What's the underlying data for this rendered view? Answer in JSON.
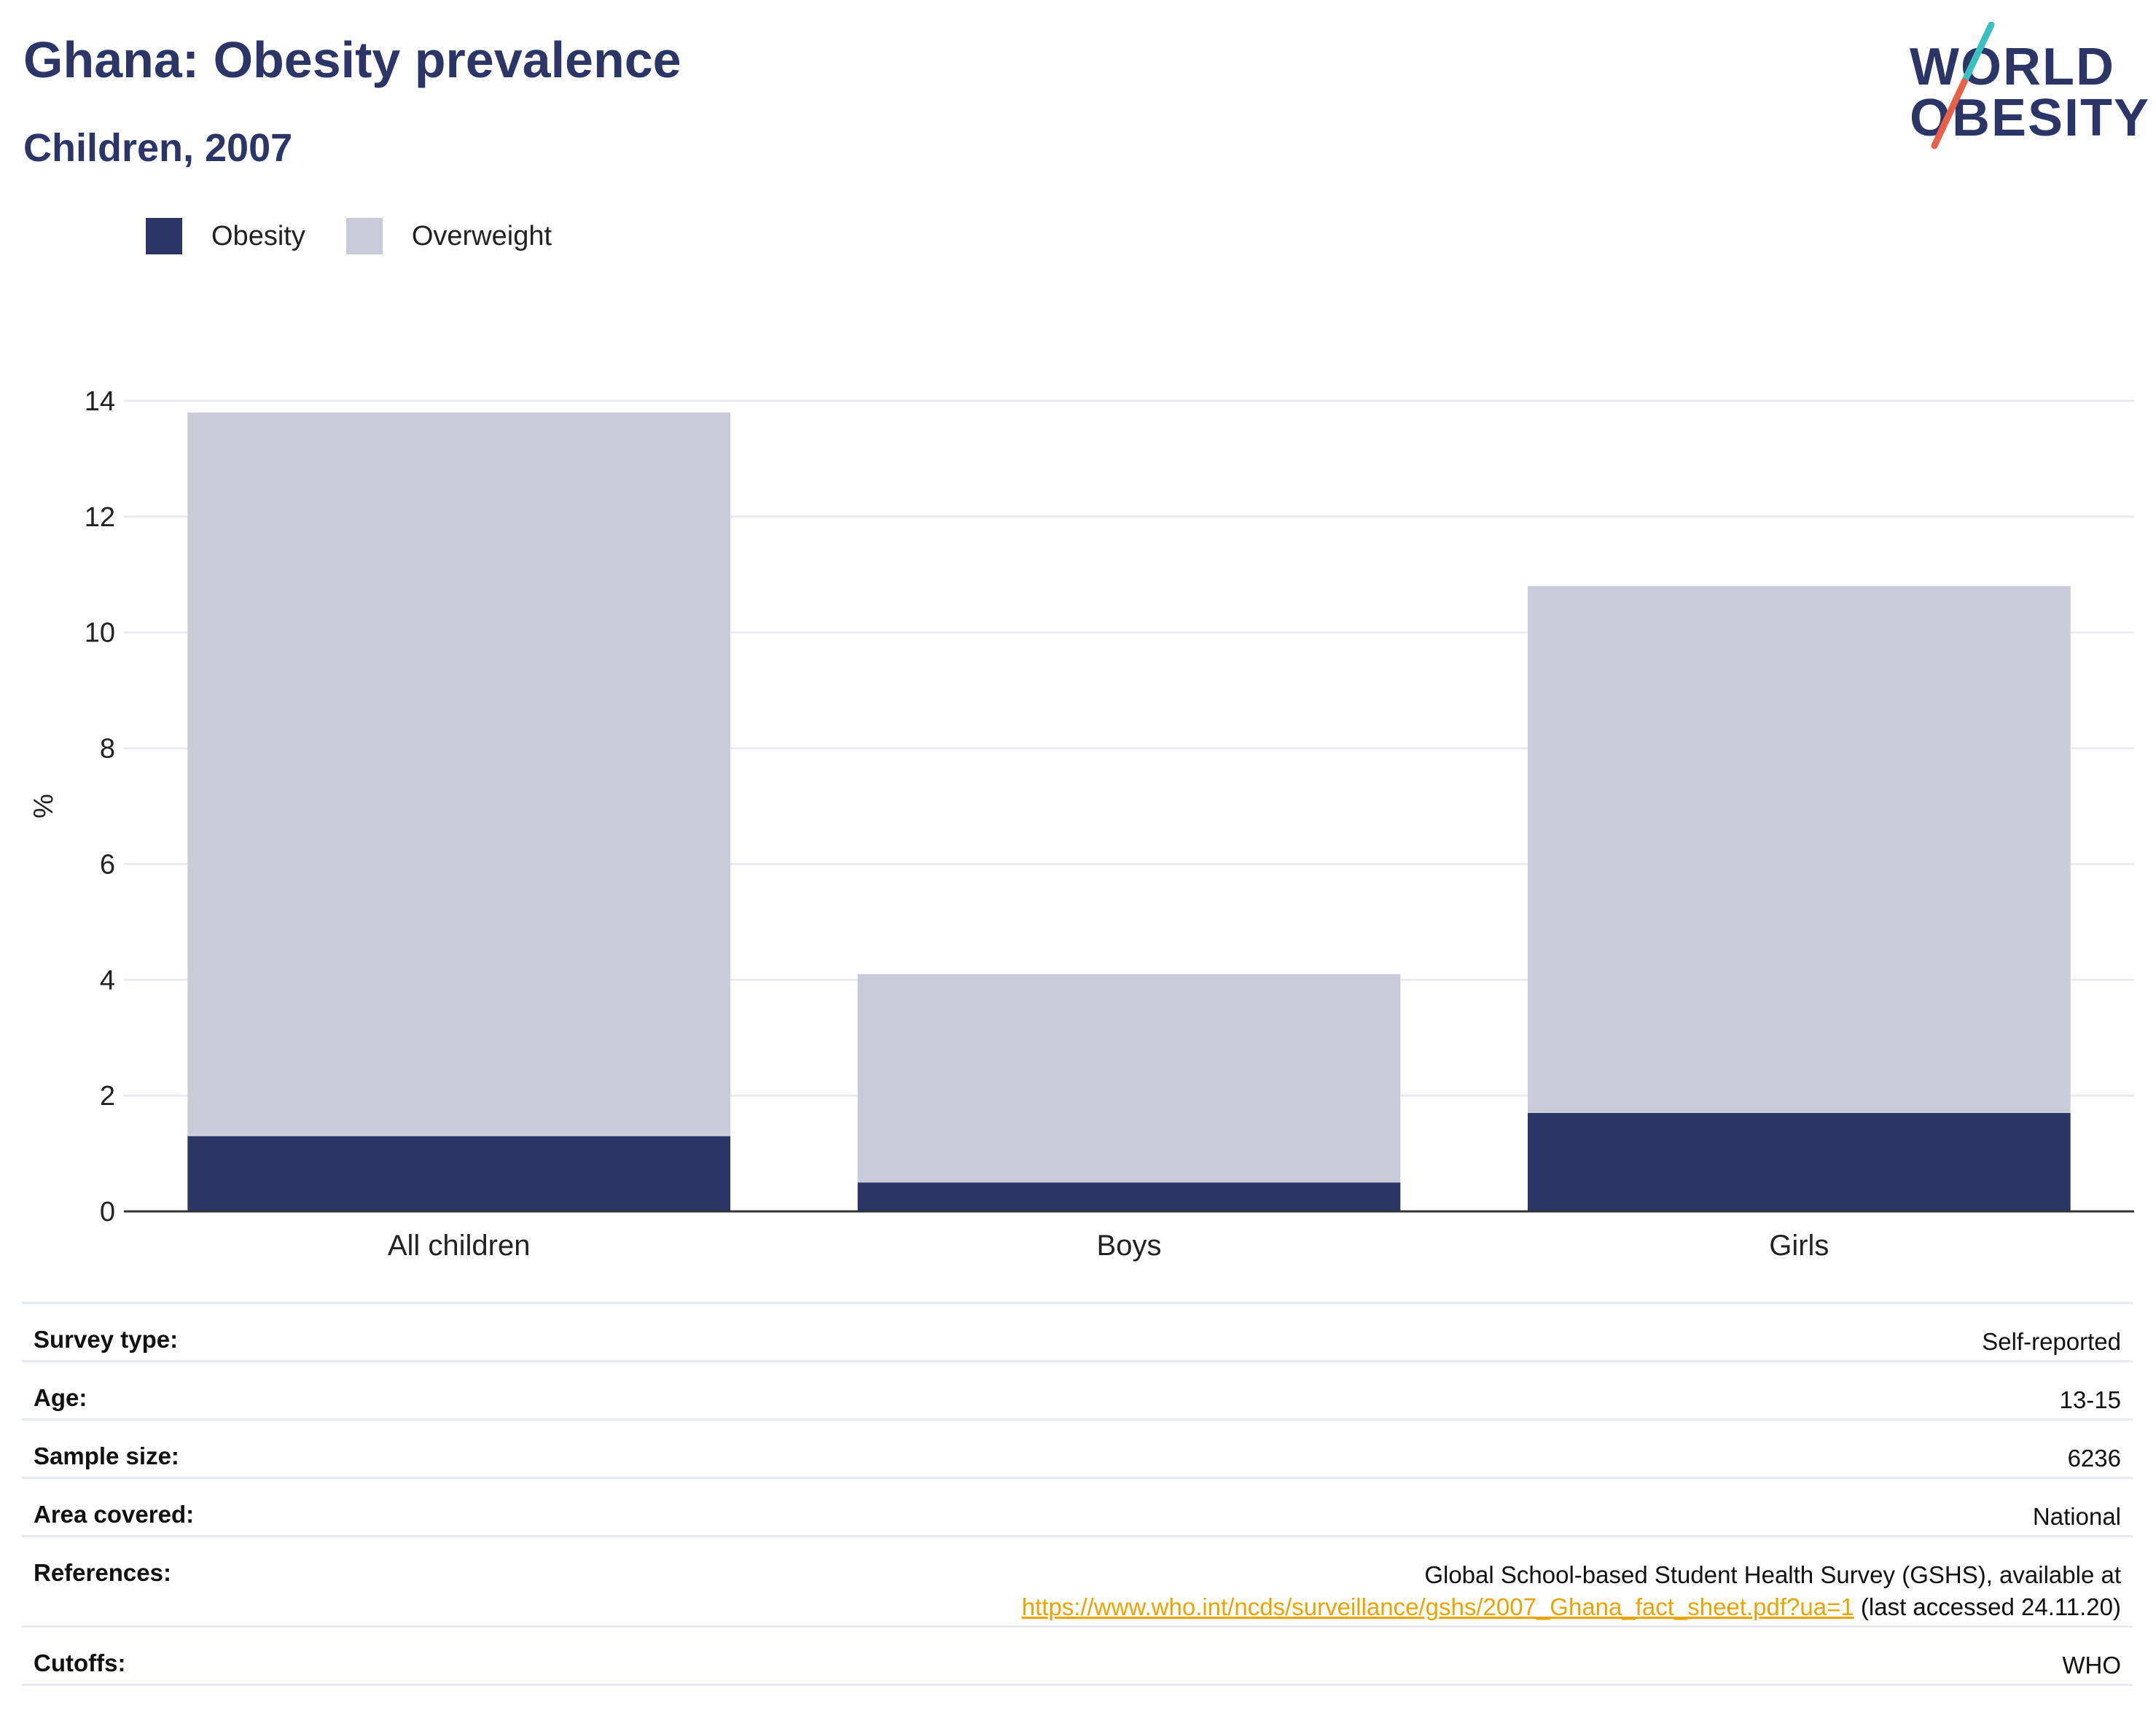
{
  "header": {
    "title": "Ghana: Obesity prevalence",
    "subtitle": "Children, 2007"
  },
  "logo": {
    "line1": "WORLD",
    "line2": "OBESITY",
    "colors": {
      "text": "#2b3566",
      "slash_top": "#3bbfbf",
      "slash_bottom": "#e8604a"
    }
  },
  "colors": {
    "obesity": "#2b3566",
    "overweight": "#c9ccd8",
    "grid": "#e9ebf0",
    "axis": "#333333",
    "link": "#e8a400"
  },
  "chart_data": {
    "type": "bar",
    "stacked": true,
    "categories": [
      "All children",
      "Boys",
      "Girls"
    ],
    "series": [
      {
        "name": "Obesity",
        "values": [
          1.3,
          0.5,
          1.7
        ]
      },
      {
        "name": "Overweight",
        "values": [
          12.5,
          3.6,
          9.1
        ]
      }
    ],
    "ylabel": "%",
    "ylim": [
      0,
      14
    ],
    "yticks": [
      0,
      2,
      4,
      6,
      8,
      10,
      12,
      14
    ],
    "grid": true,
    "legend_position": "top-left"
  },
  "info": [
    {
      "key": "Survey type:",
      "value": "Self-reported"
    },
    {
      "key": "Age:",
      "value": "13-15"
    },
    {
      "key": "Sample size:",
      "value": "6236"
    },
    {
      "key": "Area covered:",
      "value": "National"
    },
    {
      "key": "References:",
      "value_line1": "Global School-based Student Health Survey (GSHS), available at",
      "link": "https://www.who.int/ncds/surveillance/gshs/2007_Ghana_fact_sheet.pdf?ua=1",
      "value_suffix": " (last accessed 24.11.20)"
    },
    {
      "key": "Cutoffs:",
      "value": "WHO"
    }
  ]
}
